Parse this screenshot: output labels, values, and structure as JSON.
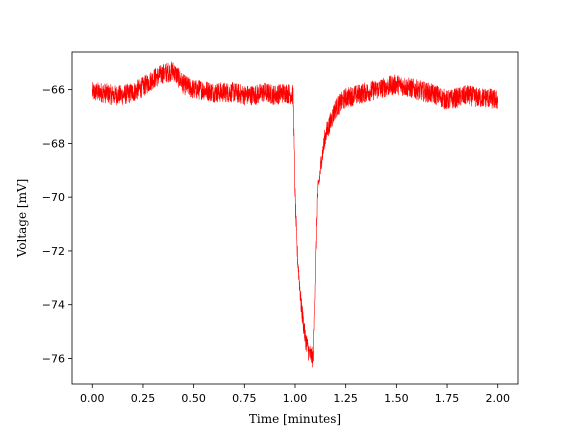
{
  "chart_data": {
    "type": "line",
    "title": "",
    "xlabel": "Time [minutes]",
    "ylabel": "Voltage [mV]",
    "xlim": [
      -0.1,
      2.1
    ],
    "ylim": [
      -76.95,
      -64.6
    ],
    "x_ticks": [
      0.0,
      0.25,
      0.5,
      0.75,
      1.0,
      1.25,
      1.5,
      1.75,
      2.0
    ],
    "x_tick_labels": [
      "0.00",
      "0.25",
      "0.50",
      "0.75",
      "1.00",
      "1.25",
      "1.50",
      "1.75",
      "2.00"
    ],
    "y_ticks": [
      -76,
      -74,
      -72,
      -70,
      -68,
      -66
    ],
    "y_tick_labels": [
      "−76",
      "−74",
      "−72",
      "−70",
      "−68",
      "−66"
    ],
    "grid": false,
    "legend": "none",
    "series": [
      {
        "color": "#ff0000",
        "x": [
          0.0,
          0.05,
          0.1,
          0.15,
          0.2,
          0.25,
          0.3,
          0.35,
          0.4,
          0.45,
          0.5,
          0.55,
          0.6,
          0.65,
          0.7,
          0.75,
          0.8,
          0.85,
          0.9,
          0.95,
          0.99,
          1.0,
          1.01,
          1.03,
          1.05,
          1.07,
          1.09,
          1.1,
          1.11,
          1.13,
          1.15,
          1.2,
          1.25,
          1.3,
          1.35,
          1.4,
          1.45,
          1.5,
          1.55,
          1.6,
          1.65,
          1.7,
          1.75,
          1.8,
          1.85,
          1.9,
          1.95,
          2.0
        ],
        "y": [
          -66.1,
          -66.1,
          -66.2,
          -66.2,
          -66.1,
          -65.9,
          -65.6,
          -65.4,
          -65.3,
          -65.8,
          -66.0,
          -66.0,
          -66.1,
          -66.1,
          -66.1,
          -66.2,
          -66.2,
          -66.1,
          -66.2,
          -66.1,
          -66.2,
          -70.0,
          -72.0,
          -74.0,
          -75.2,
          -75.8,
          -76.0,
          -73.0,
          -70.0,
          -68.6,
          -67.7,
          -66.7,
          -66.3,
          -66.2,
          -66.1,
          -66.0,
          -65.9,
          -65.8,
          -65.9,
          -66.0,
          -66.1,
          -66.2,
          -66.4,
          -66.3,
          -66.2,
          -66.3,
          -66.3,
          -66.4
        ]
      }
    ]
  }
}
